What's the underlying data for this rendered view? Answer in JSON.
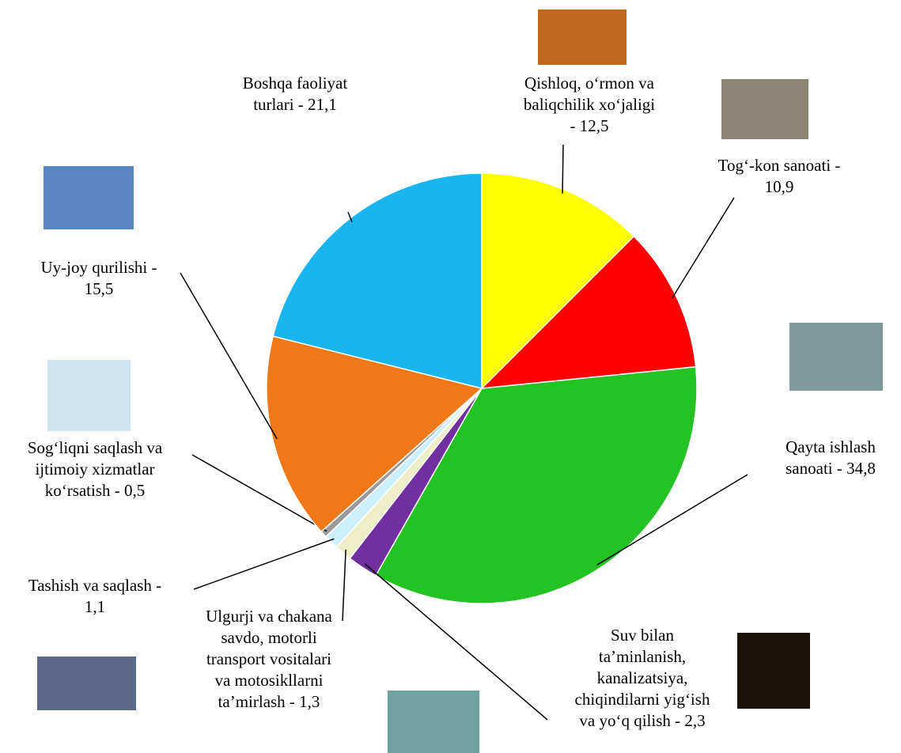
{
  "chart_data": {
    "type": "pie",
    "categories": [
      "Qishloq, o‘rmon va\nbaliqchilik xo‘jaligi\n- 12,5",
      "Tog‘-kon sanoati -\n10,9",
      "Qayta ishlash\nsanoati - 34,8",
      "Suv bilan\nta’minlanish,\nkanalizatsiya,\nchiqindilarni yig‘ish\nva yo‘q qilish - 2,3",
      "Ulgurji va chakana\nsavdo, motorli\ntransport vositalari\nva motosikllarni\nta’mirlash - 1,3",
      "Tashish va saqlash -\n1,1",
      "Sog‘liqni saqlash va\nijtimoiy xizmatlar\nko‘rsatish - 0,5",
      "Uy-joy qurilishi -\n15,5",
      "Boshqa faoliyat\nturlari - 21,1"
    ],
    "values": [
      12.5,
      10.9,
      34.8,
      2.3,
      1.3,
      1.1,
      0.5,
      15.5,
      21.1
    ],
    "colors": [
      "#ffff00",
      "#ff0000",
      "#22c322",
      "#7030a0",
      "#eeeec8",
      "#ccf0ff",
      "#9a9a9a",
      "#f07818",
      "#1ab4f0"
    ]
  }
}
